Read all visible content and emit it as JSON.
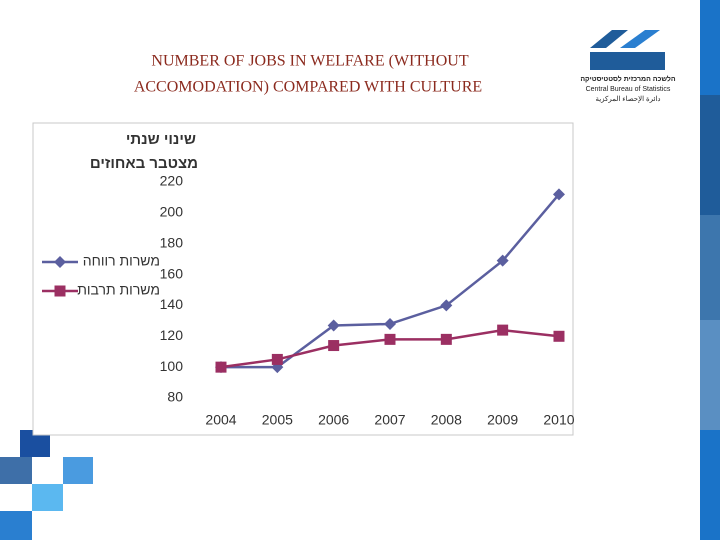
{
  "slide": {
    "title_lines": [
      "NUMBER OF JOBS IN WELFARE (WITHOUT",
      "ACCOMODATION) COMPARED WITH CULTURE"
    ],
    "logo": [
      "הלשכה המרכזית לסטטיסטיקה",
      "Central Bureau of Statistics",
      "دائرة الإحصاء المركزية"
    ]
  },
  "chart_data": {
    "type": "line",
    "y_label_lines": [
      "שינוי שנתי",
      "מצטבר באחוזים"
    ],
    "categories": [
      "2004",
      "2005",
      "2006",
      "2007",
      "2008",
      "2009",
      "2010"
    ],
    "series": [
      {
        "name": "משרות רווחה",
        "color": "#5b5f9f",
        "marker": "diamond",
        "values": [
          100,
          100,
          127,
          128,
          140,
          169,
          212
        ]
      },
      {
        "name": "משרות תרבות",
        "color": "#9b2f62",
        "marker": "square",
        "values": [
          100,
          105,
          114,
          118,
          118,
          124,
          120
        ]
      }
    ],
    "ylim": [
      80,
      220
    ],
    "yticks": [
      80,
      100,
      120,
      140,
      160,
      180,
      200,
      220
    ],
    "grid": false
  }
}
